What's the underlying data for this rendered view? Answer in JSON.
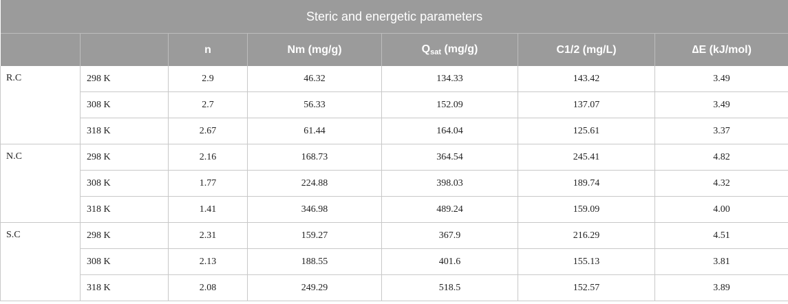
{
  "title": "Steric and energetic parameters",
  "headers": {
    "blank": "",
    "n": "n",
    "nm": "Nm (mg/g)",
    "qsat_base": "Q",
    "qsat_sub": "sat",
    "qsat_unit": " (mg/g)",
    "c12": "C1/2 (mg/L)",
    "de": "∆E (kJ/mol)"
  },
  "groups": [
    {
      "name": "R.C",
      "rows": [
        {
          "temp": "298 K",
          "n": "2.9",
          "nm": "46.32",
          "qsat": "134.33",
          "c12": "143.42",
          "de": "3.49"
        },
        {
          "temp": "308 K",
          "n": "2.7",
          "nm": "56.33",
          "qsat": "152.09",
          "c12": "137.07",
          "de": "3.49"
        },
        {
          "temp": "318 K",
          "n": "2.67",
          "nm": "61.44",
          "qsat": "164.04",
          "c12": "125.61",
          "de": "3.37"
        }
      ]
    },
    {
      "name": "N.C",
      "rows": [
        {
          "temp": "298 K",
          "n": "2.16",
          "nm": "168.73",
          "qsat": "364.54",
          "c12": "245.41",
          "de": "4.82"
        },
        {
          "temp": "308 K",
          "n": "1.77",
          "nm": "224.88",
          "qsat": "398.03",
          "c12": "189.74",
          "de": "4.32"
        },
        {
          "temp": "318 K",
          "n": "1.41",
          "nm": "346.98",
          "qsat": "489.24",
          "c12": "159.09",
          "de": "4.00"
        }
      ]
    },
    {
      "name": "S.C",
      "rows": [
        {
          "temp": "298 K",
          "n": "2.31",
          "nm": "159.27",
          "qsat": "367.9",
          "c12": "216.29",
          "de": "4.51"
        },
        {
          "temp": "308 K",
          "n": "2.13",
          "nm": "188.55",
          "qsat": "401.6",
          "c12": "155.13",
          "de": "3.81"
        },
        {
          "temp": "318 K",
          "n": "2.08",
          "nm": "249.29",
          "qsat": "518.5",
          "c12": "152.57",
          "de": "3.89"
        }
      ]
    }
  ]
}
